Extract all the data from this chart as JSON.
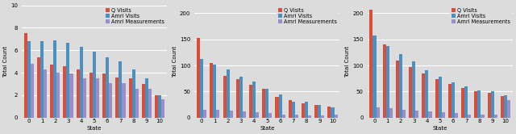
{
  "subplots": [
    {
      "ylabel": "Total Count",
      "xlabel": "State",
      "ylim": [
        0,
        10
      ],
      "yticks": [
        0,
        2,
        4,
        6,
        8,
        10
      ],
      "states": [
        0,
        1,
        2,
        3,
        4,
        5,
        6,
        7,
        8,
        9,
        10
      ],
      "q_visits": [
        7.5,
        5.4,
        4.7,
        4.6,
        4.3,
        4.0,
        3.9,
        3.6,
        3.5,
        3.0,
        2.0
      ],
      "amri_visits": [
        6.8,
        6.8,
        6.9,
        6.7,
        6.3,
        5.9,
        5.4,
        5.0,
        4.3,
        3.5,
        2.0
      ],
      "amri_measurements": [
        4.8,
        4.3,
        4.0,
        3.9,
        3.5,
        3.5,
        3.1,
        3.1,
        2.6,
        2.6,
        1.6
      ]
    },
    {
      "ylabel": "Total Count",
      "xlabel": "State",
      "ylim": [
        0,
        215
      ],
      "yticks": [
        0,
        50,
        100,
        150,
        200
      ],
      "states": [
        0,
        1,
        2,
        3,
        4,
        5,
        6,
        7,
        8,
        9,
        10
      ],
      "q_visits": [
        152,
        105,
        80,
        73,
        63,
        55,
        40,
        33,
        28,
        24,
        21
      ],
      "amri_visits": [
        113,
        102,
        92,
        79,
        69,
        55,
        45,
        30,
        30,
        25,
        20
      ],
      "amri_measurements": [
        15,
        15,
        13,
        12,
        10,
        9,
        5,
        6,
        4,
        4,
        5
      ]
    },
    {
      "ylabel": "Total Count",
      "xlabel": "State",
      "ylim": [
        0,
        215
      ],
      "yticks": [
        0,
        50,
        100,
        150,
        200
      ],
      "states": [
        0,
        1,
        2,
        3,
        4,
        5,
        6,
        7,
        8,
        9,
        10
      ],
      "q_visits": [
        207,
        140,
        110,
        97,
        85,
        73,
        65,
        57,
        51,
        47,
        42
      ],
      "amri_visits": [
        158,
        137,
        122,
        107,
        91,
        78,
        68,
        60,
        52,
        50,
        43
      ],
      "amri_measurements": [
        20,
        18,
        15,
        13,
        12,
        10,
        8,
        6,
        5,
        5,
        33
      ]
    }
  ],
  "colors": {
    "q_visits": "#D94E3A",
    "amri_visits": "#4A90C0",
    "amri_measurements": "#9B8DC8"
  },
  "legend_labels": [
    "Q Visits",
    "Amri Visits",
    "Amri Measurements"
  ],
  "bar_width": 0.25,
  "background_color": "#DCDCDC",
  "grid_color": "#FFFFFF",
  "font_size": 5.0
}
